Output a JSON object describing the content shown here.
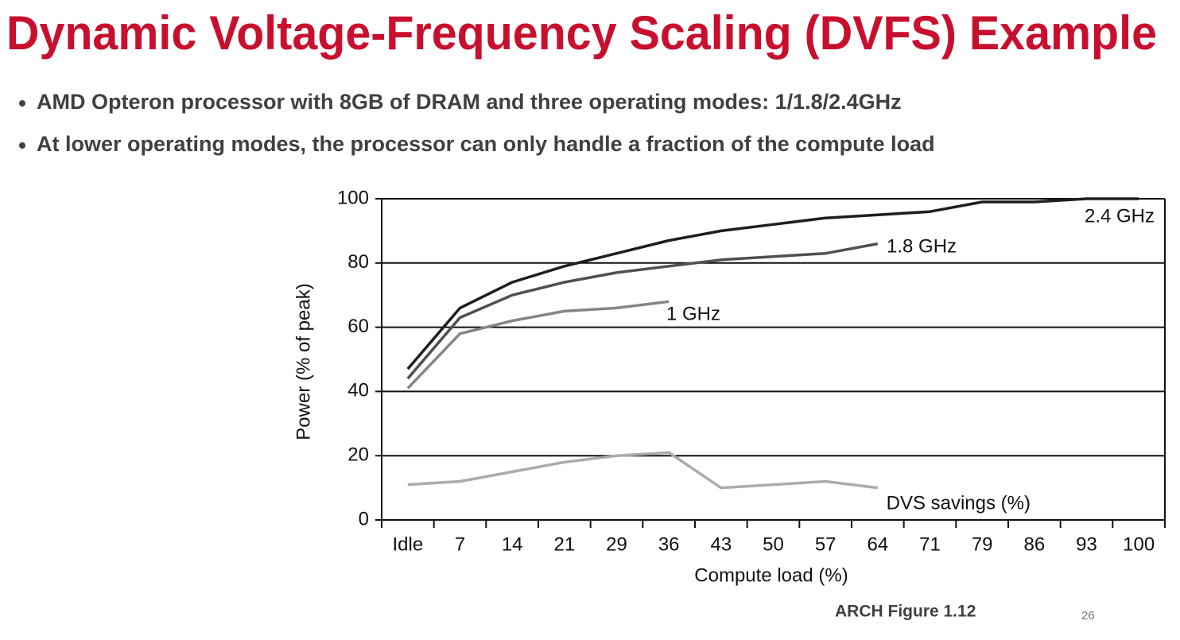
{
  "header": {
    "title": "Dynamic Voltage-Frequency Scaling (DVFS) Example"
  },
  "bullets": [
    "AMD Opteron processor with 8GB of DRAM and three operating modes: 1/1.8/2.4GHz",
    "At lower operating modes, the processor can only handle a fraction of the compute load"
  ],
  "chart_data": {
    "type": "line",
    "x_label": "Compute load (%)",
    "y_label": "Power (% of peak)",
    "categories": [
      "Idle",
      "7",
      "14",
      "21",
      "29",
      "36",
      "43",
      "50",
      "57",
      "64",
      "71",
      "79",
      "86",
      "93",
      "100"
    ],
    "series": [
      {
        "name": "2.4 GHz",
        "color": "#1e1e1e",
        "values": [
          47,
          66,
          74,
          79,
          83,
          87,
          90,
          92,
          94,
          95,
          96,
          99,
          99,
          100,
          100
        ]
      },
      {
        "name": "1.8 GHz",
        "color": "#505050",
        "values": [
          44,
          63,
          70,
          74,
          77,
          79,
          81,
          82,
          83,
          86,
          null,
          null,
          null,
          null,
          null
        ]
      },
      {
        "name": "1 GHz",
        "color": "#858585",
        "values": [
          41,
          58,
          62,
          65,
          66,
          68,
          null,
          null,
          null,
          null,
          null,
          null,
          null,
          null,
          null
        ]
      },
      {
        "name": "DVS savings (%)",
        "color": "#ababab",
        "values": [
          11,
          12,
          15,
          18,
          20,
          21,
          10,
          11,
          12,
          10,
          null,
          null,
          null,
          null,
          null
        ]
      }
    ],
    "ylim": [
      0,
      100
    ],
    "yticks": [
      0,
      20,
      40,
      60,
      80,
      100
    ],
    "grid": true
  },
  "caption": "ARCH Figure 1.12",
  "page_number": "26"
}
